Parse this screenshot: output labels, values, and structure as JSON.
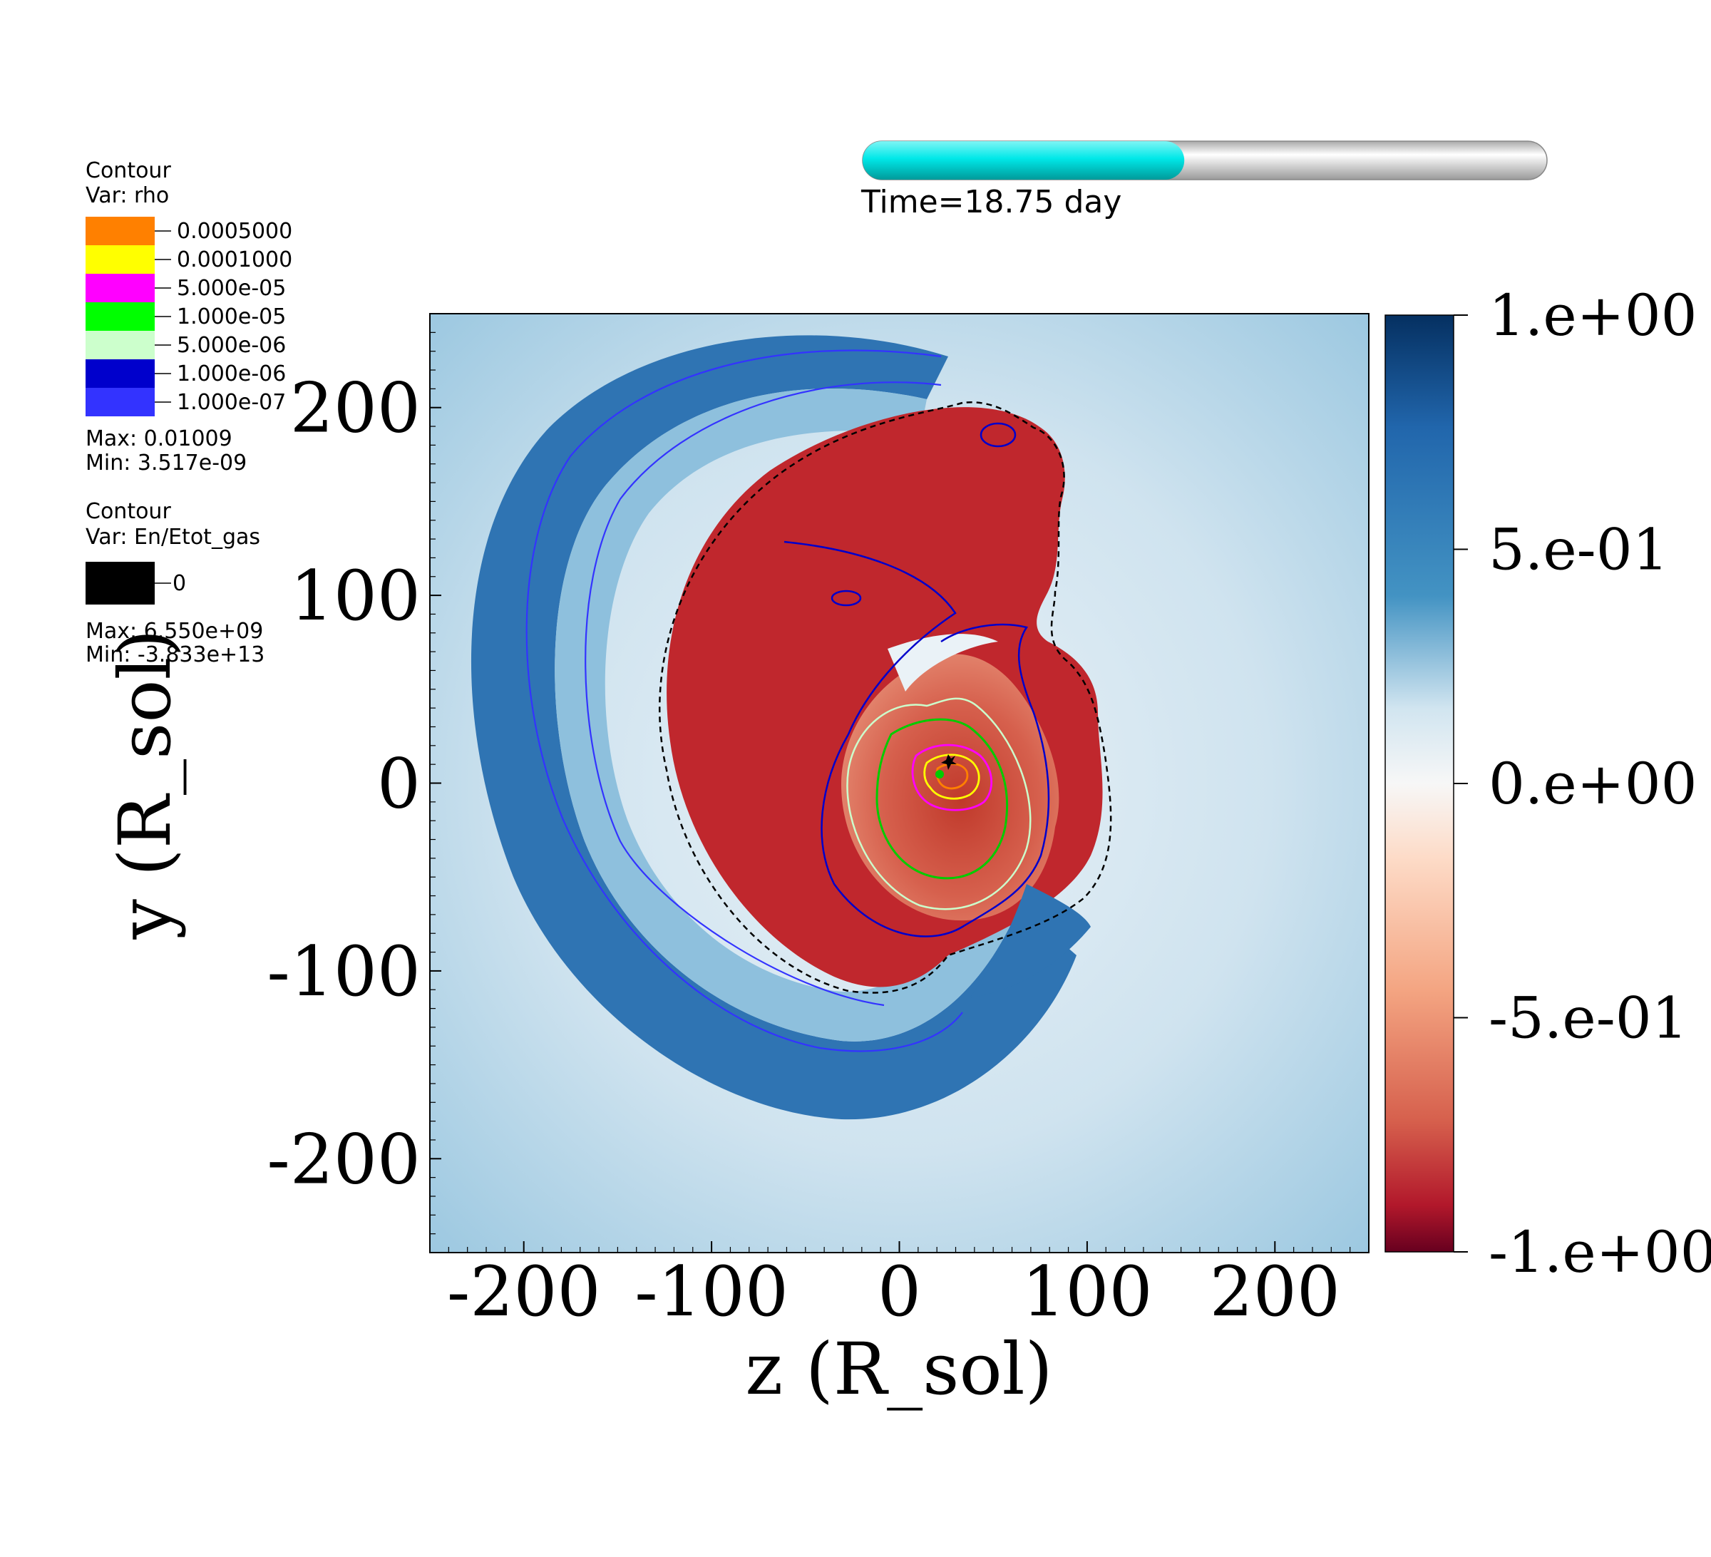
{
  "chart_data": {
    "type": "heatmap",
    "title": "",
    "xlabel": "z (R_sol)",
    "ylabel": "y (R_sol)",
    "xlim": [
      -250,
      250
    ],
    "ylim": [
      -250,
      250
    ],
    "x_ticks": [
      -200,
      -100,
      0,
      100,
      200
    ],
    "y_ticks": [
      -200,
      -100,
      0,
      100,
      200
    ],
    "x_tick_labels": [
      "-200",
      "-100",
      "0",
      "100",
      "200"
    ],
    "y_tick_labels": [
      "-200",
      "-100",
      "0",
      "100",
      "200"
    ],
    "colorbar": {
      "range": [
        -1,
        1
      ],
      "ticks": [
        1,
        0.5,
        0,
        -0.5,
        -1
      ],
      "tick_labels": [
        "1.e+00",
        "5.e-01",
        "0.e+00",
        "-5.e-01",
        "-1.e+00"
      ],
      "colormap": "red-white-blue diverging",
      "low_color": "#67001f",
      "mid_color": "#f7f7f7",
      "high_color": "#053061"
    },
    "time_bar": {
      "label": "Time=18.75 day",
      "progress": 0.47,
      "fill_color": "#00e5e5",
      "track_color": "#dcdcdc"
    },
    "contour_legends": [
      {
        "title": "Contour",
        "var": "Var: rho",
        "levels": [
          {
            "label": "0.0005000",
            "color": "#ff8000"
          },
          {
            "label": "0.0001000",
            "color": "#ffff00"
          },
          {
            "label": "5.000e-05",
            "color": "#ff00ff"
          },
          {
            "label": "1.000e-05",
            "color": "#00ff00"
          },
          {
            "label": "5.000e-06",
            "color": "#ccffcc"
          },
          {
            "label": "1.000e-06",
            "color": "#0000cc"
          },
          {
            "label": "1.000e-07",
            "color": "#3333ff"
          }
        ],
        "max": "Max:  0.01009",
        "min": "Min:  3.517e-09"
      },
      {
        "title": "Contour",
        "var": "Var: En/Etot_gas",
        "levels": [
          {
            "label": "0",
            "color": "#000000"
          }
        ],
        "max": "Max:  6.550e+09",
        "min": "Min: -3.833e+13"
      }
    ]
  }
}
